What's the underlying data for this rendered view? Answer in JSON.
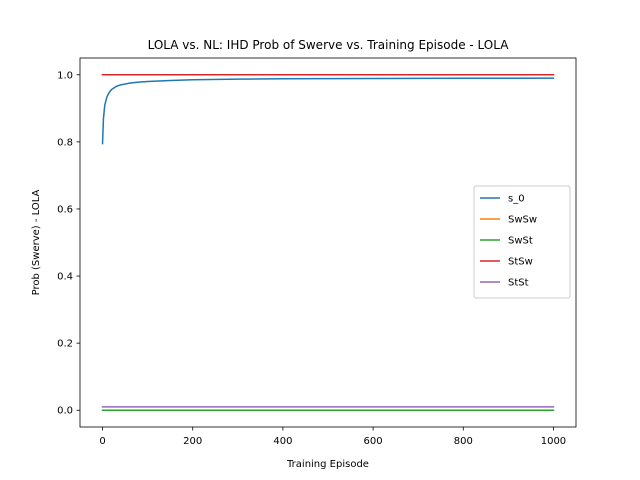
{
  "chart_data": {
    "type": "line",
    "title": "LOLA vs. NL: IHD Prob of Swerve vs. Training Episode - LOLA",
    "xlabel": "Training Episode",
    "ylabel": "Prob (Swerve) - LOLA",
    "xlim": [
      -50,
      1050
    ],
    "ylim": [
      -0.05,
      1.05
    ],
    "xticks": [
      0,
      200,
      400,
      600,
      800,
      1000
    ],
    "xtick_labels": [
      "0",
      "200",
      "400",
      "600",
      "800",
      "1000"
    ],
    "yticks": [
      0.0,
      0.2,
      0.4,
      0.6,
      0.8,
      1.0
    ],
    "ytick_labels": [
      "0.0",
      "0.2",
      "0.4",
      "0.6",
      "0.8",
      "1.0"
    ],
    "grid": false,
    "legend_position": "center-right",
    "series": [
      {
        "name": "s_0",
        "color": "#1f77b4",
        "x": [
          0,
          2,
          5,
          10,
          15,
          20,
          30,
          40,
          60,
          80,
          100,
          150,
          200,
          300,
          400,
          500,
          600,
          700,
          800,
          900,
          1000
        ],
        "y": [
          0.795,
          0.87,
          0.91,
          0.935,
          0.948,
          0.956,
          0.965,
          0.97,
          0.975,
          0.978,
          0.98,
          0.983,
          0.985,
          0.987,
          0.988,
          0.9885,
          0.989,
          0.9893,
          0.9895,
          0.9897,
          0.99
        ]
      },
      {
        "name": "SwSw",
        "color": "#ff7f0e",
        "x": [
          0,
          1000
        ],
        "y": [
          1.0,
          1.0
        ]
      },
      {
        "name": "SwSt",
        "color": "#2ca02c",
        "x": [
          0,
          1000
        ],
        "y": [
          0.0,
          0.0
        ]
      },
      {
        "name": "StSw",
        "color": "#d62728",
        "x": [
          0,
          1000
        ],
        "y": [
          1.0,
          1.0
        ]
      },
      {
        "name": "StSt",
        "color": "#9467bd",
        "x": [
          0,
          1000
        ],
        "y": [
          0.01,
          0.01
        ]
      }
    ]
  }
}
